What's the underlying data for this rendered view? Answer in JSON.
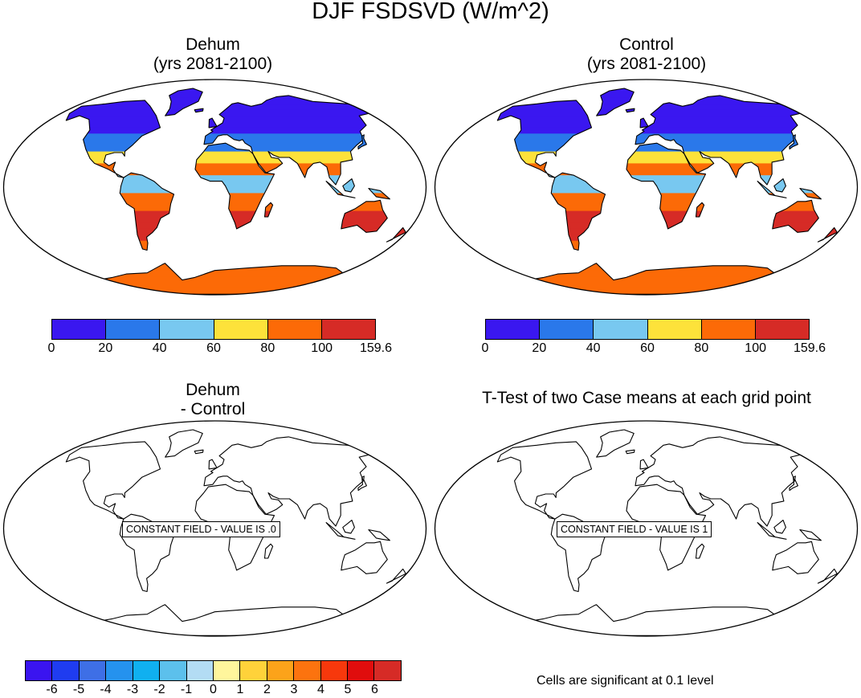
{
  "figure": {
    "title": "DJF FSDSVD (W/m^2)"
  },
  "panels": [
    {
      "id": "dehum",
      "title_line1": "Dehum",
      "title_line2": "(yrs 2081-2100)"
    },
    {
      "id": "control",
      "title_line1": "Control",
      "title_line2": "(yrs 2081-2100)"
    },
    {
      "id": "diff",
      "title_line1": "Dehum",
      "title_line2": "- Control",
      "constant_label": "CONSTANT FIELD - VALUE IS .0"
    },
    {
      "id": "ttest",
      "title_line1": "T-Test of two Case means at each grid point",
      "constant_label": "CONSTANT FIELD - VALUE IS 1"
    }
  ],
  "colorbar_main": {
    "colors": [
      "#3a17f0",
      "#2a78ea",
      "#78c8f0",
      "#fde23a",
      "#fc6a07",
      "#d62b26"
    ],
    "labels": [
      "0",
      "20",
      "40",
      "60",
      "80",
      "100",
      "159.6"
    ]
  },
  "colorbar_diff": {
    "colors": [
      "#3a14f0",
      "#1f3cf0",
      "#3e6fe6",
      "#2592ee",
      "#10b0f0",
      "#5cc0ec",
      "#b3dcf4",
      "#fff69c",
      "#ffd23a",
      "#fca31a",
      "#fc730f",
      "#f7380c",
      "#e00d0d",
      "#d62b26"
    ],
    "labels": [
      "-6",
      "-5",
      "-4",
      "-3",
      "-2",
      "-1",
      "0",
      "1",
      "2",
      "3",
      "4",
      "5",
      "6"
    ]
  },
  "ttest_note": "Cells are significant at 0.1 level"
}
